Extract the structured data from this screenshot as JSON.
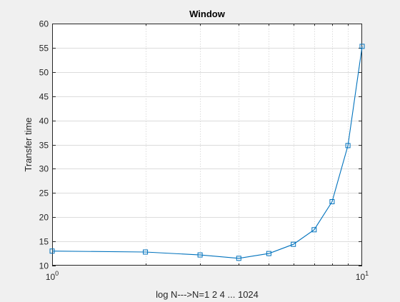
{
  "chart_data": {
    "type": "line",
    "title": "Window",
    "xlabel": "log N--->N=1 2 4 ... 1024",
    "ylabel": "Transfer time",
    "xscale": "log",
    "xlim": [
      1,
      10
    ],
    "ylim": [
      10,
      60
    ],
    "grid": true,
    "legend": "none",
    "marker": "square",
    "line_color": "#0072bd",
    "x_ticks": [
      {
        "value": 1,
        "base": "10",
        "exp": "0"
      },
      {
        "value": 10,
        "base": "10",
        "exp": "1"
      }
    ],
    "y_ticks": [
      10,
      15,
      20,
      25,
      30,
      35,
      40,
      45,
      50,
      55,
      60
    ],
    "series": [
      {
        "x": [
          1,
          2,
          3,
          4,
          5,
          6,
          7,
          8,
          9,
          10
        ],
        "y": [
          13.0,
          12.8,
          12.2,
          11.5,
          12.5,
          14.4,
          17.4,
          23.2,
          34.8,
          55.3
        ]
      }
    ]
  }
}
